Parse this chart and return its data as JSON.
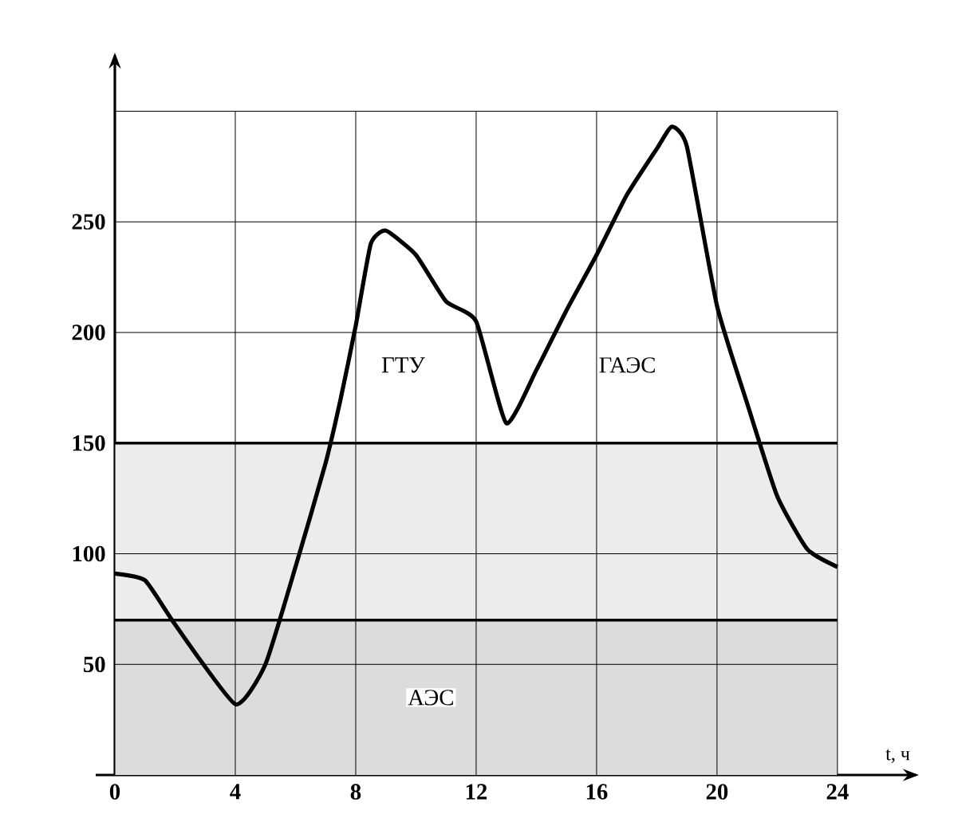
{
  "chart_data": {
    "type": "line",
    "xlabel": "t, ч",
    "x": [
      0,
      1,
      2,
      4,
      5,
      6,
      7,
      7.5,
      8,
      8.5,
      9,
      10,
      11,
      12,
      13,
      14,
      15,
      16,
      17,
      18,
      18.5,
      19,
      20,
      21,
      22,
      23,
      24
    ],
    "series": [
      {
        "color": "#000000",
        "values": [
          91,
          88,
          68,
          32,
          50,
          94,
          141,
          170,
          203,
          240,
          246,
          235,
          214,
          205,
          159,
          183,
          210,
          235,
          262,
          283,
          293,
          284,
          212,
          168,
          126,
          102,
          94
        ]
      }
    ],
    "xlim": [
      0,
      26.6
    ],
    "ylim": [
      0,
      325
    ],
    "xticks": [
      0,
      4,
      8,
      12,
      16,
      20,
      24
    ],
    "yticks": [
      50,
      100,
      150,
      200,
      250,
      {
        "value": 300,
        "label": null
      }
    ],
    "grid": true,
    "ref_lines": [
      {
        "axis": "y",
        "value": 70,
        "color": "#000000"
      },
      {
        "axis": "y",
        "value": 150,
        "color": "#000000"
      }
    ],
    "bands": [
      {
        "axis": "y",
        "from": 0,
        "to": 70,
        "label": "АЭС",
        "color": "#dcdcdc"
      },
      {
        "axis": "y",
        "from": 70,
        "to": 150,
        "color": "#ececec"
      }
    ],
    "annotations": [
      "ГТУ",
      "ГАЭС"
    ],
    "marker": "none",
    "line_style": "solid"
  }
}
